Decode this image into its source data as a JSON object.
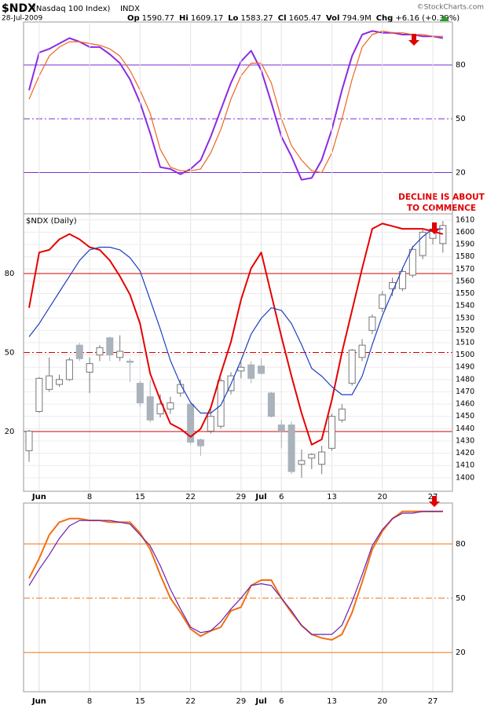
{
  "header": {
    "symbol": "$NDX",
    "name": "(Nasdaq 100 Index)",
    "exchange": "INDX",
    "source": "©StockCharts.com",
    "date": "28-Jul-2009",
    "stats": [
      {
        "label": "Op",
        "value": "1590.77"
      },
      {
        "label": "Hi",
        "value": "1609.17"
      },
      {
        "label": "Lo",
        "value": "1583.27"
      },
      {
        "label": "Cl",
        "value": "1605.47"
      },
      {
        "label": "Vol",
        "value": "794.9M"
      },
      {
        "label": "Chg",
        "value": "+6.16 (+0.39%)"
      }
    ]
  },
  "chart_data": [
    {
      "type": "line",
      "ylim": [
        -3,
        104
      ],
      "yticks": [
        20,
        50,
        80
      ],
      "guide_color": "#7b2fd6",
      "series": [
        {
          "color": "#8a2be2",
          "values": [
            66,
            87,
            89,
            92,
            95,
            93,
            90,
            90,
            86,
            81,
            72,
            59,
            42,
            23,
            22,
            19,
            22,
            27,
            40,
            55,
            70,
            82,
            88,
            77,
            59,
            40,
            29,
            16,
            17,
            27,
            44,
            66,
            85,
            97,
            99,
            98,
            98,
            97,
            97,
            96,
            96,
            95
          ]
        },
        {
          "color": "#f0641e",
          "values": [
            61,
            74,
            85,
            90,
            93,
            93,
            92,
            91,
            89,
            85,
            77,
            66,
            53,
            33,
            23,
            21,
            21,
            22,
            31,
            44,
            61,
            74,
            81,
            81,
            70,
            50,
            35,
            27,
            21,
            20,
            31,
            50,
            72,
            90,
            97,
            99,
            98,
            98,
            97,
            97,
            96,
            96
          ]
        }
      ]
    },
    {
      "type": "candlestick",
      "title": "$NDX (Daily)",
      "categories": [
        null,
        "Jun",
        null,
        null,
        null,
        null,
        "8",
        null,
        null,
        null,
        null,
        "15",
        null,
        null,
        null,
        null,
        "22",
        null,
        null,
        null,
        null,
        "29",
        null,
        "Jul",
        null,
        "6",
        null,
        null,
        null,
        null,
        "13",
        null,
        null,
        null,
        null,
        "20",
        null,
        null,
        null,
        null,
        "27",
        null
      ],
      "open": [
        1422,
        1454,
        1472,
        1476,
        1480,
        1508,
        1486,
        1500,
        1514,
        1498,
        1495,
        1477,
        1466,
        1452,
        1456,
        1469,
        1460,
        1431,
        1438,
        1442,
        1471,
        1487,
        1492,
        1491,
        1469,
        1443,
        1443,
        1411,
        1416,
        1411,
        1424,
        1447,
        1477,
        1498,
        1520,
        1538,
        1554,
        1554,
        1565,
        1581,
        1595,
        1590.77
      ],
      "high": [
        1439,
        1482,
        1498,
        1484,
        1498,
        1510,
        1498,
        1508,
        1515,
        1516,
        1497,
        1479,
        1480,
        1468,
        1466,
        1480,
        1462,
        1432,
        1457,
        1481,
        1486,
        1494,
        1495,
        1497,
        1470,
        1447,
        1446,
        1423,
        1420,
        1426,
        1452,
        1460,
        1505,
        1513,
        1533,
        1552,
        1563,
        1570,
        1589,
        1602,
        1604,
        1609.17
      ],
      "low": [
        1413,
        1453,
        1470,
        1474,
        1479,
        1495,
        1469,
        1495,
        1495,
        1495,
        1478,
        1458,
        1445,
        1449,
        1452,
        1466,
        1427,
        1418,
        1436,
        1440,
        1468,
        1481,
        1477,
        1484,
        1449,
        1424,
        1403,
        1400,
        1407,
        1403,
        1422,
        1445,
        1475,
        1495,
        1517,
        1535,
        1548,
        1552,
        1563,
        1578,
        1590,
        1583.27
      ],
      "close": [
        1438,
        1481,
        1483,
        1480,
        1496,
        1497,
        1493,
        1506,
        1500,
        1503,
        1494,
        1461,
        1447,
        1460,
        1461,
        1476,
        1429,
        1426,
        1450,
        1479,
        1483,
        1490,
        1481,
        1485,
        1450,
        1438,
        1405,
        1414,
        1419,
        1421,
        1450,
        1456,
        1504,
        1508,
        1531,
        1549,
        1559,
        1568,
        1586,
        1600,
        1601,
        1605.47
      ],
      "ylim": [
        1389,
        1615
      ],
      "yticks": [
        1400,
        1410,
        1420,
        1430,
        1440,
        1450,
        1460,
        1470,
        1480,
        1490,
        1500,
        1510,
        1520,
        1530,
        1540,
        1550,
        1560,
        1570,
        1580,
        1590,
        1600,
        1610
      ],
      "y2lim": [
        -2.7,
        102.7
      ],
      "y2ticks": [
        20,
        50,
        80
      ],
      "guide_color": "#d40000",
      "grid": true,
      "series": [
        {
          "color": "#e60000",
          "axis": "y2",
          "values": [
            67,
            88,
            89,
            93,
            95,
            93,
            90,
            89,
            85,
            79,
            72,
            61,
            42,
            32,
            23,
            21,
            18,
            21,
            29,
            42,
            54,
            70,
            82,
            88,
            72,
            56,
            41,
            27,
            15,
            17,
            32,
            50,
            66,
            82,
            97,
            99,
            98,
            97,
            97,
            97,
            96,
            95
          ]
        },
        {
          "color": "#1f3fbf",
          "axis": "y2",
          "values": [
            56,
            61,
            67,
            73,
            79,
            85,
            89,
            90,
            90,
            89,
            86,
            81,
            70,
            59,
            47,
            38,
            31,
            27,
            27,
            30,
            38,
            47,
            57,
            63,
            67,
            66,
            61,
            53,
            44,
            41,
            37,
            34,
            34,
            41,
            53,
            64,
            73,
            82,
            90,
            94,
            97,
            97
          ]
        }
      ],
      "annotation": [
        "DECLINE IS ABOUT",
        "TO COMMENCE"
      ]
    },
    {
      "type": "line",
      "categories": [
        null,
        "Jun",
        null,
        null,
        null,
        null,
        "8",
        null,
        null,
        null,
        null,
        "15",
        null,
        null,
        null,
        null,
        "22",
        null,
        null,
        null,
        null,
        "29",
        null,
        "Jul",
        null,
        "6",
        null,
        null,
        null,
        null,
        "13",
        null,
        null,
        null,
        null,
        "20",
        null,
        null,
        null,
        null,
        "27",
        null
      ],
      "ylim": [
        -1.7,
        102.6
      ],
      "yticks": [
        20,
        50,
        80
      ],
      "guide_color": "#f07010",
      "series": [
        {
          "color": "#f07010",
          "values": [
            61,
            72,
            85,
            92,
            94,
            94,
            93,
            93,
            92,
            92,
            92,
            86,
            77,
            63,
            50,
            42,
            33,
            29,
            32,
            34,
            43,
            45,
            57,
            60,
            60,
            50,
            42,
            35,
            30,
            28,
            27,
            30,
            42,
            59,
            77,
            87,
            94,
            98,
            98,
            98,
            98,
            98
          ]
        },
        {
          "color": "#6a1fb0",
          "values": [
            57,
            66,
            74,
            83,
            90,
            93,
            93,
            93,
            93,
            92,
            91,
            85,
            79,
            68,
            55,
            44,
            34,
            31,
            32,
            37,
            44,
            50,
            57,
            58,
            57,
            50,
            43,
            35,
            30,
            30,
            30,
            35,
            48,
            63,
            79,
            88,
            94,
            97,
            97,
            98,
            98,
            98
          ]
        }
      ]
    }
  ]
}
